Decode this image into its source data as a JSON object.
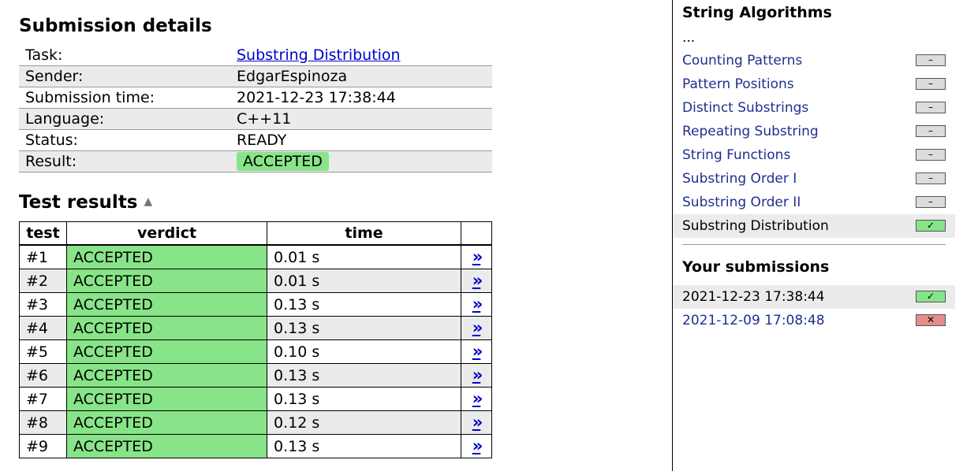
{
  "details": {
    "title": "Submission details",
    "rows": [
      {
        "key": "Task:",
        "value": "Substring Distribution",
        "link": true
      },
      {
        "key": "Sender:",
        "value": "EdgarEspinoza"
      },
      {
        "key": "Submission time:",
        "value": "2021-12-23 17:38:44"
      },
      {
        "key": "Language:",
        "value": "C++11"
      },
      {
        "key": "Status:",
        "value": "READY"
      },
      {
        "key": "Result:",
        "value": "ACCEPTED",
        "badge": true
      }
    ]
  },
  "tests": {
    "title": "Test results",
    "sort_icon": "triangle-up-icon",
    "headers": [
      "test",
      "verdict",
      "time",
      ""
    ],
    "view_label": "»",
    "rows": [
      {
        "test": "#1",
        "verdict": "ACCEPTED",
        "time": "0.01 s"
      },
      {
        "test": "#2",
        "verdict": "ACCEPTED",
        "time": "0.01 s"
      },
      {
        "test": "#3",
        "verdict": "ACCEPTED",
        "time": "0.13 s"
      },
      {
        "test": "#4",
        "verdict": "ACCEPTED",
        "time": "0.13 s"
      },
      {
        "test": "#5",
        "verdict": "ACCEPTED",
        "time": "0.10 s"
      },
      {
        "test": "#6",
        "verdict": "ACCEPTED",
        "time": "0.13 s"
      },
      {
        "test": "#7",
        "verdict": "ACCEPTED",
        "time": "0.13 s"
      },
      {
        "test": "#8",
        "verdict": "ACCEPTED",
        "time": "0.12 s"
      },
      {
        "test": "#9",
        "verdict": "ACCEPTED",
        "time": "0.13 s"
      }
    ]
  },
  "sidebar": {
    "section_title": "String Algorithms",
    "ellipsis": "...",
    "tasks": [
      {
        "label": "Counting Patterns",
        "score": "–",
        "state": "none"
      },
      {
        "label": "Pattern Positions",
        "score": "–",
        "state": "none"
      },
      {
        "label": "Distinct Substrings",
        "score": "–",
        "state": "none"
      },
      {
        "label": "Repeating Substring",
        "score": "–",
        "state": "none"
      },
      {
        "label": "String Functions",
        "score": "–",
        "state": "none"
      },
      {
        "label": "Substring Order I",
        "score": "–",
        "state": "none"
      },
      {
        "label": "Substring Order II",
        "score": "–",
        "state": "none"
      },
      {
        "label": "Substring Distribution",
        "score": "✓",
        "state": "full",
        "current": true
      }
    ],
    "subs_title": "Your submissions",
    "submissions": [
      {
        "label": "2021-12-23 17:38:44",
        "score": "✓",
        "state": "full",
        "current": true
      },
      {
        "label": "2021-12-09 17:08:48",
        "score": "✕",
        "state": "zero"
      }
    ]
  },
  "colors": {
    "accepted": "#88e488",
    "rejected": "#e68c8c",
    "link": "#0000cc",
    "sidebar_link": "#1f2f8f",
    "shade": "#ebebeb"
  }
}
